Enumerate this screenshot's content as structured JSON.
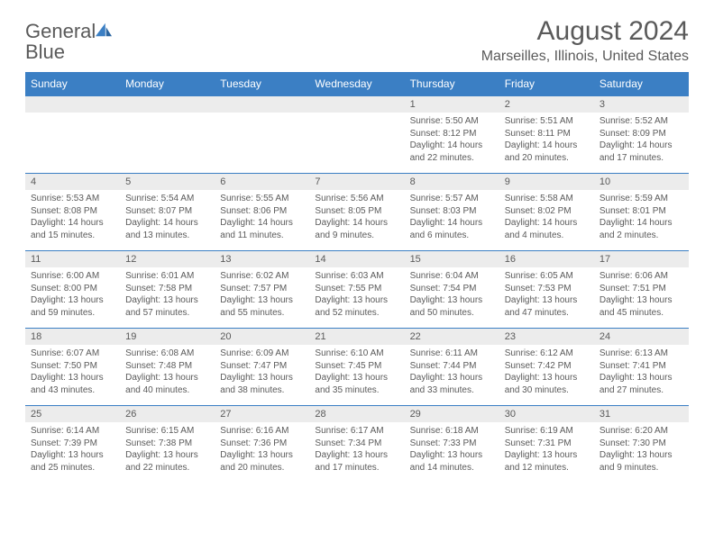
{
  "logo": {
    "text_gray": "General",
    "text_blue": "Blue",
    "icon_color": "#3b7fc4"
  },
  "title": "August 2024",
  "location": "Marseilles, Illinois, United States",
  "colors": {
    "header_bg": "#3b7fc4",
    "header_text": "#ffffff",
    "daynum_bg": "#ececec",
    "text": "#5a5a5a",
    "row_border": "#3b7fc4",
    "page_bg": "#ffffff"
  },
  "fonts": {
    "title_size": 30,
    "location_size": 16,
    "dayheader_size": 12,
    "daynum_size": 11,
    "cell_size": 10
  },
  "day_headers": [
    "Sunday",
    "Monday",
    "Tuesday",
    "Wednesday",
    "Thursday",
    "Friday",
    "Saturday"
  ],
  "weeks": [
    [
      {
        "num": "",
        "lines": []
      },
      {
        "num": "",
        "lines": []
      },
      {
        "num": "",
        "lines": []
      },
      {
        "num": "",
        "lines": []
      },
      {
        "num": "1",
        "lines": [
          "Sunrise: 5:50 AM",
          "Sunset: 8:12 PM",
          "Daylight: 14 hours and 22 minutes."
        ]
      },
      {
        "num": "2",
        "lines": [
          "Sunrise: 5:51 AM",
          "Sunset: 8:11 PM",
          "Daylight: 14 hours and 20 minutes."
        ]
      },
      {
        "num": "3",
        "lines": [
          "Sunrise: 5:52 AM",
          "Sunset: 8:09 PM",
          "Daylight: 14 hours and 17 minutes."
        ]
      }
    ],
    [
      {
        "num": "4",
        "lines": [
          "Sunrise: 5:53 AM",
          "Sunset: 8:08 PM",
          "Daylight: 14 hours and 15 minutes."
        ]
      },
      {
        "num": "5",
        "lines": [
          "Sunrise: 5:54 AM",
          "Sunset: 8:07 PM",
          "Daylight: 14 hours and 13 minutes."
        ]
      },
      {
        "num": "6",
        "lines": [
          "Sunrise: 5:55 AM",
          "Sunset: 8:06 PM",
          "Daylight: 14 hours and 11 minutes."
        ]
      },
      {
        "num": "7",
        "lines": [
          "Sunrise: 5:56 AM",
          "Sunset: 8:05 PM",
          "Daylight: 14 hours and 9 minutes."
        ]
      },
      {
        "num": "8",
        "lines": [
          "Sunrise: 5:57 AM",
          "Sunset: 8:03 PM",
          "Daylight: 14 hours and 6 minutes."
        ]
      },
      {
        "num": "9",
        "lines": [
          "Sunrise: 5:58 AM",
          "Sunset: 8:02 PM",
          "Daylight: 14 hours and 4 minutes."
        ]
      },
      {
        "num": "10",
        "lines": [
          "Sunrise: 5:59 AM",
          "Sunset: 8:01 PM",
          "Daylight: 14 hours and 2 minutes."
        ]
      }
    ],
    [
      {
        "num": "11",
        "lines": [
          "Sunrise: 6:00 AM",
          "Sunset: 8:00 PM",
          "Daylight: 13 hours and 59 minutes."
        ]
      },
      {
        "num": "12",
        "lines": [
          "Sunrise: 6:01 AM",
          "Sunset: 7:58 PM",
          "Daylight: 13 hours and 57 minutes."
        ]
      },
      {
        "num": "13",
        "lines": [
          "Sunrise: 6:02 AM",
          "Sunset: 7:57 PM",
          "Daylight: 13 hours and 55 minutes."
        ]
      },
      {
        "num": "14",
        "lines": [
          "Sunrise: 6:03 AM",
          "Sunset: 7:55 PM",
          "Daylight: 13 hours and 52 minutes."
        ]
      },
      {
        "num": "15",
        "lines": [
          "Sunrise: 6:04 AM",
          "Sunset: 7:54 PM",
          "Daylight: 13 hours and 50 minutes."
        ]
      },
      {
        "num": "16",
        "lines": [
          "Sunrise: 6:05 AM",
          "Sunset: 7:53 PM",
          "Daylight: 13 hours and 47 minutes."
        ]
      },
      {
        "num": "17",
        "lines": [
          "Sunrise: 6:06 AM",
          "Sunset: 7:51 PM",
          "Daylight: 13 hours and 45 minutes."
        ]
      }
    ],
    [
      {
        "num": "18",
        "lines": [
          "Sunrise: 6:07 AM",
          "Sunset: 7:50 PM",
          "Daylight: 13 hours and 43 minutes."
        ]
      },
      {
        "num": "19",
        "lines": [
          "Sunrise: 6:08 AM",
          "Sunset: 7:48 PM",
          "Daylight: 13 hours and 40 minutes."
        ]
      },
      {
        "num": "20",
        "lines": [
          "Sunrise: 6:09 AM",
          "Sunset: 7:47 PM",
          "Daylight: 13 hours and 38 minutes."
        ]
      },
      {
        "num": "21",
        "lines": [
          "Sunrise: 6:10 AM",
          "Sunset: 7:45 PM",
          "Daylight: 13 hours and 35 minutes."
        ]
      },
      {
        "num": "22",
        "lines": [
          "Sunrise: 6:11 AM",
          "Sunset: 7:44 PM",
          "Daylight: 13 hours and 33 minutes."
        ]
      },
      {
        "num": "23",
        "lines": [
          "Sunrise: 6:12 AM",
          "Sunset: 7:42 PM",
          "Daylight: 13 hours and 30 minutes."
        ]
      },
      {
        "num": "24",
        "lines": [
          "Sunrise: 6:13 AM",
          "Sunset: 7:41 PM",
          "Daylight: 13 hours and 27 minutes."
        ]
      }
    ],
    [
      {
        "num": "25",
        "lines": [
          "Sunrise: 6:14 AM",
          "Sunset: 7:39 PM",
          "Daylight: 13 hours and 25 minutes."
        ]
      },
      {
        "num": "26",
        "lines": [
          "Sunrise: 6:15 AM",
          "Sunset: 7:38 PM",
          "Daylight: 13 hours and 22 minutes."
        ]
      },
      {
        "num": "27",
        "lines": [
          "Sunrise: 6:16 AM",
          "Sunset: 7:36 PM",
          "Daylight: 13 hours and 20 minutes."
        ]
      },
      {
        "num": "28",
        "lines": [
          "Sunrise: 6:17 AM",
          "Sunset: 7:34 PM",
          "Daylight: 13 hours and 17 minutes."
        ]
      },
      {
        "num": "29",
        "lines": [
          "Sunrise: 6:18 AM",
          "Sunset: 7:33 PM",
          "Daylight: 13 hours and 14 minutes."
        ]
      },
      {
        "num": "30",
        "lines": [
          "Sunrise: 6:19 AM",
          "Sunset: 7:31 PM",
          "Daylight: 13 hours and 12 minutes."
        ]
      },
      {
        "num": "31",
        "lines": [
          "Sunrise: 6:20 AM",
          "Sunset: 7:30 PM",
          "Daylight: 13 hours and 9 minutes."
        ]
      }
    ]
  ]
}
